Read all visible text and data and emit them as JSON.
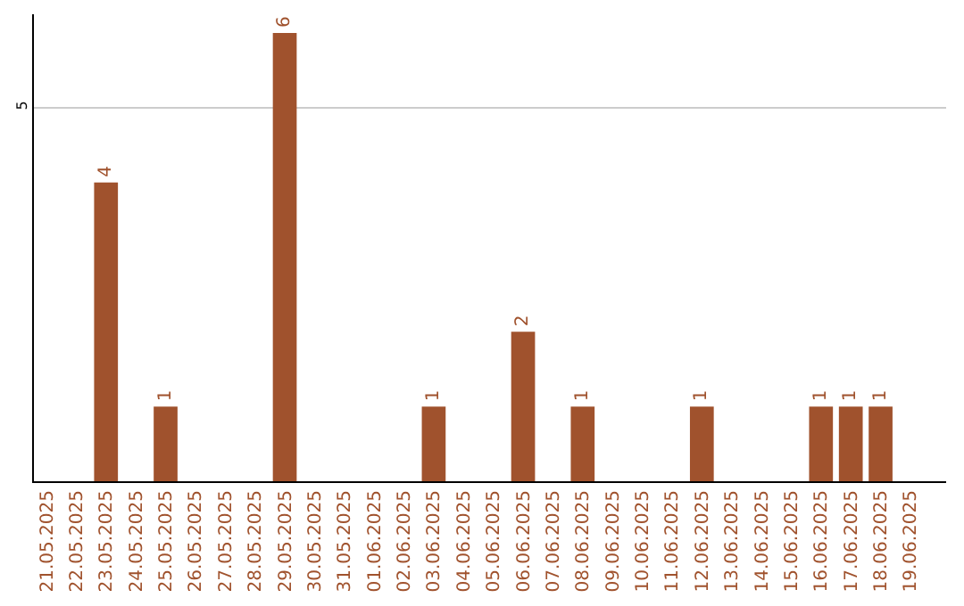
{
  "chart_data": {
    "type": "bar",
    "categories": [
      "21.05.2025",
      "22.05.2025",
      "23.05.2025",
      "24.05.2025",
      "25.05.2025",
      "26.05.2025",
      "27.05.2025",
      "28.05.2025",
      "29.05.2025",
      "30.05.2025",
      "31.05.2025",
      "01.06.2025",
      "02.06.2025",
      "03.06.2025",
      "04.06.2025",
      "05.06.2025",
      "06.06.2025",
      "07.06.2025",
      "08.06.2025",
      "09.06.2025",
      "10.06.2025",
      "11.06.2025",
      "12.06.2025",
      "13.06.2025",
      "14.06.2025",
      "15.06.2025",
      "16.06.2025",
      "17.06.2025",
      "18.06.2025",
      "19.06.2025"
    ],
    "values": [
      0,
      0,
      4,
      0,
      1,
      0,
      0,
      0,
      6,
      0,
      0,
      0,
      0,
      1,
      0,
      0,
      2,
      0,
      1,
      0,
      0,
      0,
      1,
      0,
      0,
      0,
      1,
      1,
      1,
      0
    ],
    "value_labels": [
      null,
      null,
      "4",
      null,
      "1",
      null,
      null,
      null,
      "6",
      null,
      null,
      null,
      null,
      "1",
      null,
      null,
      "2",
      null,
      "1",
      null,
      null,
      null,
      "1",
      null,
      null,
      null,
      "1",
      "1",
      "1",
      null
    ],
    "color": "#a0522d",
    "ylim": [
      0,
      6.25
    ],
    "yticks": [
      5
    ],
    "grid": "y",
    "legend": false
  }
}
